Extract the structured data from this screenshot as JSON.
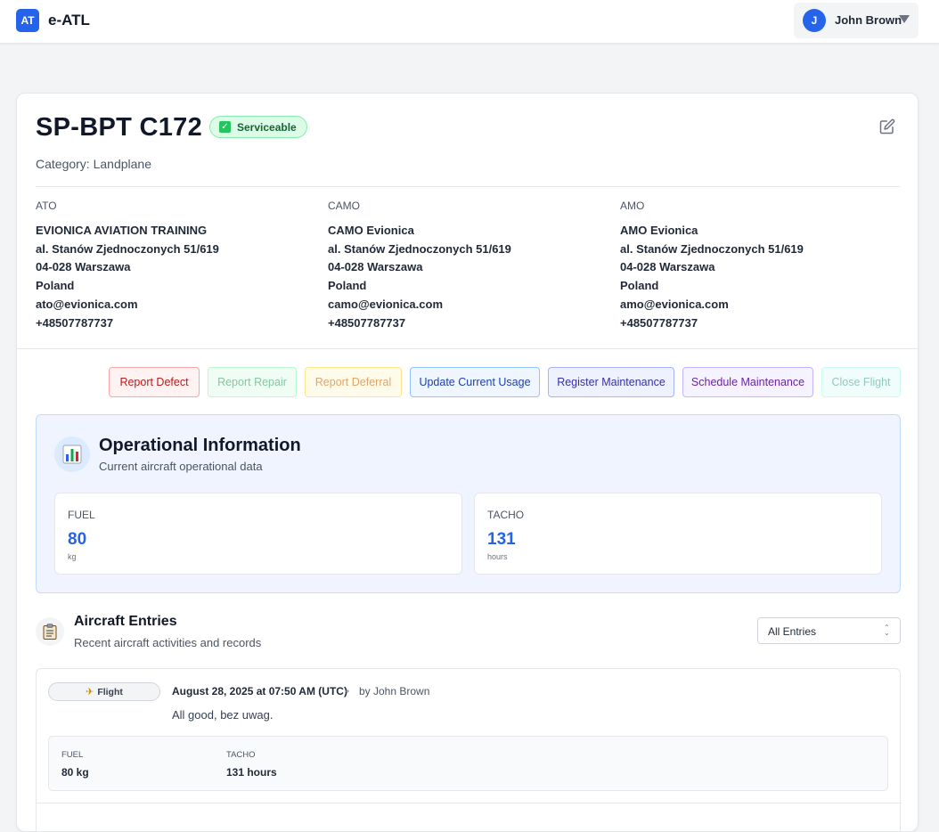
{
  "app": {
    "logo": "AT",
    "name": "e-ATL"
  },
  "user": {
    "initial": "J",
    "name": "John Brown"
  },
  "aircraft": {
    "title": "SP-BPT C172",
    "status": "Serviceable",
    "status_color": "#22c55e",
    "category": "Category: Landplane"
  },
  "orgs": [
    {
      "label": "ATO",
      "lines": [
        "EVIONICA AVIATION TRAINING",
        "al. Stanów Zjednoczonych 51/619",
        "04-028 Warszawa",
        "Poland",
        "ato@evionica.com",
        "+48507787737"
      ]
    },
    {
      "label": "CAMO",
      "lines": [
        "CAMO Evionica",
        "al. Stanów Zjednoczonych 51/619",
        "04-028 Warszawa",
        "Poland",
        "camo@evionica.com",
        "+48507787737"
      ]
    },
    {
      "label": "AMO",
      "lines": [
        "AMO Evionica",
        "al. Stanów Zjednoczonych 51/619",
        "04-028 Warszawa",
        "Poland",
        "amo@evionica.com",
        "+48507787737"
      ]
    }
  ],
  "actions": {
    "report_defect": "Report Defect",
    "report_repair": "Report Repair",
    "report_deferral": "Report Deferral",
    "update_usage": "Update Current Usage",
    "register_maintenance": "Register Maintenance",
    "schedule_maintenance": "Schedule Maintenance",
    "close_flight": "Close Flight"
  },
  "operational": {
    "icon": "bar-chart-icon",
    "title": "Operational Information",
    "subtitle": "Current aircraft operational data",
    "fuel": {
      "label": "FUEL",
      "value": "80",
      "unit": "kg"
    },
    "tacho": {
      "label": "TACHO",
      "value": "131",
      "unit": "hours"
    }
  },
  "entries": {
    "icon": "clipboard-icon",
    "title": "Aircraft Entries",
    "subtitle": "Recent aircraft activities and records",
    "filter": "All Entries",
    "items": [
      {
        "type": "Flight",
        "icon": "airplane-icon",
        "date": "August 28, 2025 at 07:50 AM (UTC)",
        "separator": "•",
        "by": "by John Brown",
        "message": "All good, bez uwag.",
        "fuel_label": "FUEL",
        "fuel_value": "80 kg",
        "tacho_label": "TACHO",
        "tacho_value": "131 hours"
      }
    ]
  }
}
